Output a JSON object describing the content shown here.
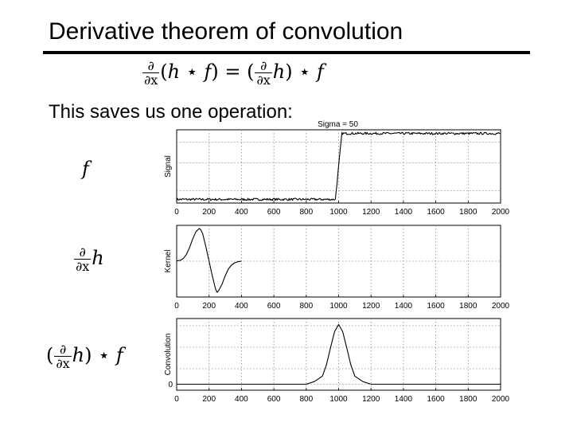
{
  "slide": {
    "title": "Derivative theorem of convolution",
    "body": "This saves us one operation:"
  },
  "equation": {
    "d": "∂",
    "dx": "∂x",
    "lhs_open": "(",
    "h": "h",
    "star": "⋆",
    "f": "f",
    "close": ")",
    "equals": "=",
    "open": "("
  },
  "row_labels": {
    "f": "f",
    "dh_d": "∂",
    "dh_dx": "∂x",
    "dh_h": "h",
    "conv_open": "(",
    "conv_d": "∂",
    "conv_dx": "∂x",
    "conv_h": "h",
    "conv_close": ")",
    "conv_star": "⋆",
    "conv_f": "f"
  },
  "chart_data": [
    {
      "type": "line",
      "title": "Sigma = 50",
      "ylabel": "Signal",
      "xlim": [
        0,
        2000
      ],
      "x_ticks": [
        0,
        200,
        400,
        600,
        800,
        1000,
        1200,
        1400,
        1600,
        1800,
        2000
      ],
      "y_ticks": [],
      "grid": true,
      "series": [
        {
          "x": [
            0,
            980,
            1000,
            1020,
            2000
          ],
          "y": [
            0.05,
            0.05,
            0.5,
            0.95,
            0.95
          ],
          "noise": 0.015
        }
      ]
    },
    {
      "type": "line",
      "title": "",
      "ylabel": "Kernel",
      "xlim": [
        0,
        2000
      ],
      "x_ticks": [
        0,
        200,
        400,
        600,
        800,
        1000,
        1200,
        1400,
        1600,
        1800,
        2000
      ],
      "y_ticks": [],
      "grid": true,
      "series": [
        {
          "x": [
            0,
            20,
            40,
            60,
            80,
            100,
            120,
            140,
            150,
            160,
            180,
            200,
            220,
            240,
            250,
            260,
            280,
            300,
            320,
            340,
            360,
            380,
            400
          ],
          "y": [
            0.004,
            0.016,
            0.049,
            0.13,
            0.27,
            0.44,
            0.58,
            0.64,
            0.61,
            0.54,
            0.29,
            0.0,
            -0.29,
            -0.54,
            -0.61,
            -0.57,
            -0.45,
            -0.28,
            -0.15,
            -0.07,
            -0.03,
            -0.01,
            0.0
          ]
        }
      ]
    },
    {
      "type": "line",
      "title": "",
      "ylabel": "Convolution",
      "xlim": [
        0,
        2000
      ],
      "x_ticks": [
        0,
        200,
        400,
        600,
        800,
        1000,
        1200,
        1400,
        1600,
        1800,
        2000
      ],
      "y_ticks": [
        0
      ],
      "ylim": [
        -0.1,
        1.1
      ],
      "grid": true,
      "series": [
        {
          "x": [
            0,
            800,
            850,
            900,
            925,
            950,
            975,
            1000,
            1025,
            1050,
            1075,
            1100,
            1150,
            1200,
            2000
          ],
          "y": [
            0,
            0,
            0.044,
            0.135,
            0.325,
            0.61,
            0.88,
            1.0,
            0.88,
            0.61,
            0.325,
            0.135,
            0.044,
            0,
            0
          ]
        }
      ]
    }
  ]
}
